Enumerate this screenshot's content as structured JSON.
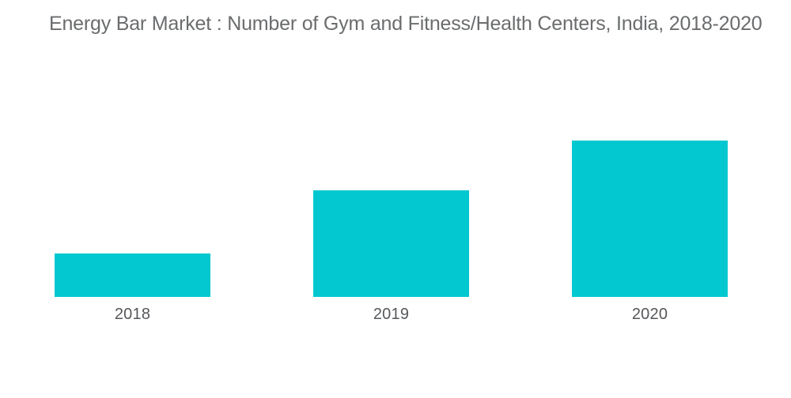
{
  "title": "Energy Bar Market : Number of Gym and Fitness/Health Centers, India, 2018-2020",
  "colors": {
    "background": "#FFFFFF",
    "bar": "#04C8D0",
    "title_text": "#6A6C6E",
    "tick_label_text": "#55575A"
  },
  "chart_data": {
    "type": "bar",
    "title": "Energy Bar Market : Number of Gym and Fitness/Health Centers, India, 2018-2020",
    "categories": [
      "2018",
      "2019",
      "2020"
    ],
    "values": [
      28,
      68,
      100
    ],
    "series_note": "No y-axis shown; values are relative bar heights estimated as percent of the tallest (2020) bar",
    "xlabel": "",
    "ylabel": "",
    "ylim": [
      0,
      100
    ],
    "y_axis_visible": false,
    "x_axis_line_visible": false,
    "gridlines": false,
    "legend": "none",
    "bar_color": "#04C8D0"
  }
}
